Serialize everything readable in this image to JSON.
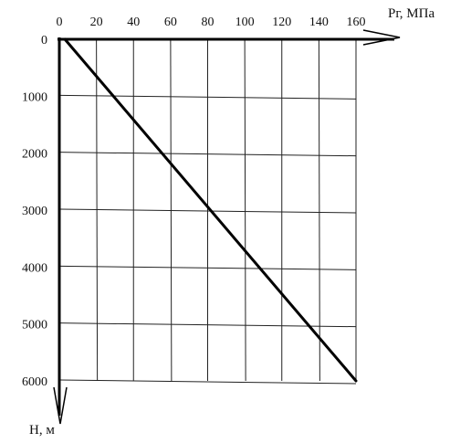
{
  "chart_data": {
    "type": "line",
    "title": "",
    "xlabel": "Рг, МПа",
    "ylabel": "Н, м",
    "x_axis_position": "top",
    "y_axis_direction": "down",
    "xlim": [
      0,
      160
    ],
    "ylim": [
      0,
      6000
    ],
    "x_ticks": [
      0,
      20,
      40,
      60,
      80,
      100,
      120,
      140,
      160
    ],
    "y_ticks": [
      0,
      1000,
      2000,
      3000,
      4000,
      5000,
      6000
    ],
    "grid": true,
    "legend": "none",
    "series": [
      {
        "color": "#000000",
        "x": [
          3,
          160
        ],
        "y": [
          0,
          6000
        ]
      }
    ]
  }
}
